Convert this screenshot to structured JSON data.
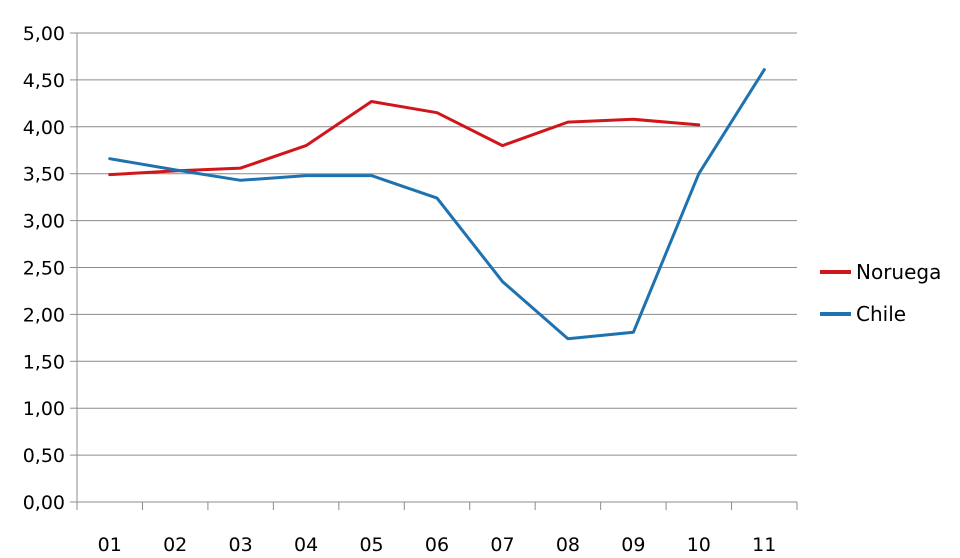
{
  "chart_data": {
    "type": "line",
    "categories": [
      "01",
      "02",
      "03",
      "04",
      "05",
      "06",
      "07",
      "08",
      "09",
      "10",
      "11"
    ],
    "ylim": [
      0,
      5
    ],
    "yticks": [
      "0,00",
      "0,50",
      "1,00",
      "1,50",
      "2,00",
      "2,50",
      "3,00",
      "3,50",
      "4,00",
      "4,50",
      "5,00"
    ],
    "grid": true,
    "legend_position": "right",
    "series": [
      {
        "name": "Noruega",
        "color": "#d0161b",
        "values": [
          3.49,
          3.53,
          3.56,
          3.8,
          4.27,
          4.15,
          3.8,
          4.05,
          4.08,
          4.02,
          null
        ]
      },
      {
        "name": "Chile",
        "color": "#1f72b0",
        "values": [
          3.66,
          3.54,
          3.43,
          3.48,
          3.48,
          3.24,
          2.35,
          1.74,
          1.81,
          3.5,
          4.61
        ]
      }
    ]
  }
}
